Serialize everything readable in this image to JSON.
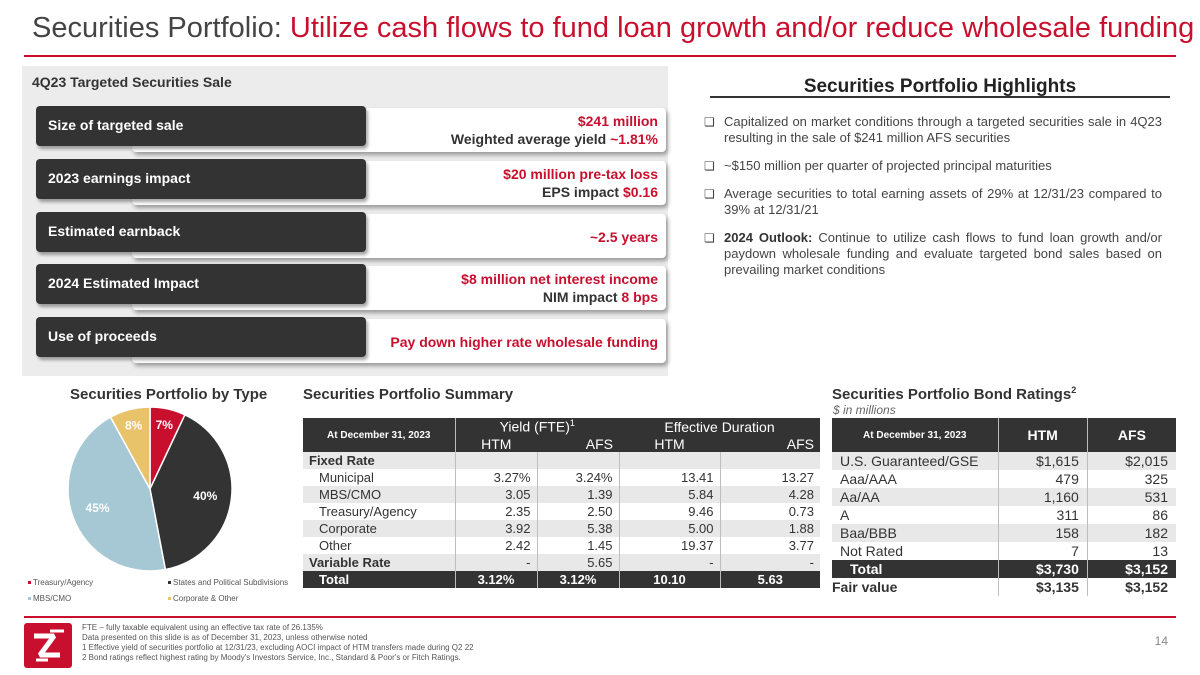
{
  "title": {
    "main": "Securities Portfolio: ",
    "accent": "Utilize cash flows to fund loan growth and/or reduce wholesale funding"
  },
  "sale": {
    "heading": "4Q23 Targeted Securities Sale",
    "rows": [
      {
        "label": "Size of targeted sale",
        "line1_red": "$241 million",
        "line1_dark": "",
        "line2_dark": "Weighted average yield ",
        "line2_red": "~1.81%"
      },
      {
        "label": "2023 earnings impact",
        "line1_red": "$20 million pre-tax loss",
        "line1_dark": "",
        "line2_dark": "EPS impact ",
        "line2_red": "$0.16"
      },
      {
        "label": "Estimated earnback",
        "line1_red": "~2.5 years",
        "line1_dark": "",
        "line2_dark": "",
        "line2_red": ""
      },
      {
        "label": "2024 Estimated Impact",
        "line1_red": "$8 million net interest income",
        "line1_dark": "",
        "line2_dark": "NIM impact ",
        "line2_red": "8 bps"
      },
      {
        "label": "Use of proceeds",
        "line1_red": "Pay down higher rate wholesale funding",
        "line1_dark": "",
        "line2_dark": "",
        "line2_red": ""
      }
    ]
  },
  "highlights": {
    "title": "Securities Portfolio Highlights",
    "items": [
      {
        "bold": "",
        "text": "Capitalized on market conditions through a targeted securities sale in 4Q23 resulting in the sale of $241 million AFS securities"
      },
      {
        "bold": "",
        "text": "~$150 million per quarter of projected principal maturities"
      },
      {
        "bold": "",
        "text": "Average securities to total earning assets of 29% at 12/31/23 compared to 39% at 12/31/21"
      },
      {
        "bold": "2024 Outlook: ",
        "text": "Continue to utilize cash flows to fund loan growth and/or paydown wholesale funding and evaluate targeted bond sales based on prevailing market conditions"
      }
    ]
  },
  "chart_data": {
    "type": "pie",
    "title": "Securities Portfolio by Type",
    "slices": [
      {
        "name": "Treasury/Agency",
        "value": 7,
        "label": "7%",
        "color": "#c8102e"
      },
      {
        "name": "States and Political Subdivisions",
        "value": 40,
        "label": "40%",
        "color": "#333333"
      },
      {
        "name": "MBS/CMO",
        "value": 45,
        "label": "45%",
        "color": "#a6c8d4"
      },
      {
        "name": "Corporate & Other",
        "value": 8,
        "label": "8%",
        "color": "#e8c36a"
      }
    ]
  },
  "summary": {
    "title": "Securities Portfolio Summary",
    "col_date": "At December 31, 2023",
    "group1": "Yield (FTE)",
    "group1_sup": "1",
    "group2": "Effective Duration",
    "sub": [
      "HTM",
      "AFS",
      "HTM",
      "AFS"
    ],
    "rows": [
      {
        "label": "Fixed Rate",
        "kind": "section",
        "cells": [
          "",
          "",
          "",
          ""
        ]
      },
      {
        "label": "Municipal",
        "kind": "indent",
        "cells": [
          "3.27%",
          "3.24%",
          "13.41",
          "13.27"
        ]
      },
      {
        "label": "MBS/CMO",
        "kind": "indent",
        "cells": [
          "3.05",
          "1.39",
          "5.84",
          "4.28"
        ]
      },
      {
        "label": "Treasury/Agency",
        "kind": "indent",
        "cells": [
          "2.35",
          "2.50",
          "9.46",
          "0.73"
        ]
      },
      {
        "label": "Corporate",
        "kind": "indent",
        "cells": [
          "3.92",
          "5.38",
          "5.00",
          "1.88"
        ]
      },
      {
        "label": "Other",
        "kind": "indent",
        "cells": [
          "2.42",
          "1.45",
          "19.37",
          "3.77"
        ]
      },
      {
        "label": "Variable Rate",
        "kind": "section",
        "cells": [
          "-",
          "5.65",
          "-",
          "-"
        ]
      },
      {
        "label": "Total",
        "kind": "total",
        "cells": [
          "3.12%",
          "3.12%",
          "10.10",
          "5.63"
        ]
      }
    ]
  },
  "ratings": {
    "title": "Securities Portfolio Bond Ratings",
    "title_sup": "2",
    "subtitle": "$ in millions",
    "col_date": "At December 31, 2023",
    "cols": [
      "HTM",
      "AFS"
    ],
    "rows": [
      {
        "label": "U.S. Guaranteed/GSE",
        "kind": "row",
        "cells": [
          "$1,615",
          "$2,015"
        ]
      },
      {
        "label": "Aaa/AAA",
        "kind": "row",
        "cells": [
          "479",
          "325"
        ]
      },
      {
        "label": "Aa/AA",
        "kind": "row",
        "cells": [
          "1,160",
          "531"
        ]
      },
      {
        "label": "A",
        "kind": "row",
        "cells": [
          "311",
          "86"
        ]
      },
      {
        "label": "Baa/BBB",
        "kind": "row",
        "cells": [
          "158",
          "182"
        ]
      },
      {
        "label": "Not Rated",
        "kind": "row",
        "cells": [
          "7",
          "13"
        ]
      },
      {
        "label": "Total",
        "kind": "total",
        "cells": [
          "$3,730",
          "$3,152"
        ]
      },
      {
        "label": "Fair value",
        "kind": "fair",
        "cells": [
          "$3,135",
          "$3,152"
        ]
      }
    ]
  },
  "footnotes": [
    "FTE – fully taxable equivalent using an effective tax rate of 26.135%",
    "Data presented on this slide is as of December 31, 2023, unless otherwise noted",
    "1   Effective yield of securities portfolio at 12/31/23, excluding AOCI impact of HTM transfers made during Q2 22",
    "2   Bond ratings reflect highest rating by Moody's Investors Service, Inc., Standard & Poor's or Fitch Ratings."
  ],
  "page_number": "14",
  "colors": {
    "accent": "#c8102e",
    "dark": "#333333"
  }
}
